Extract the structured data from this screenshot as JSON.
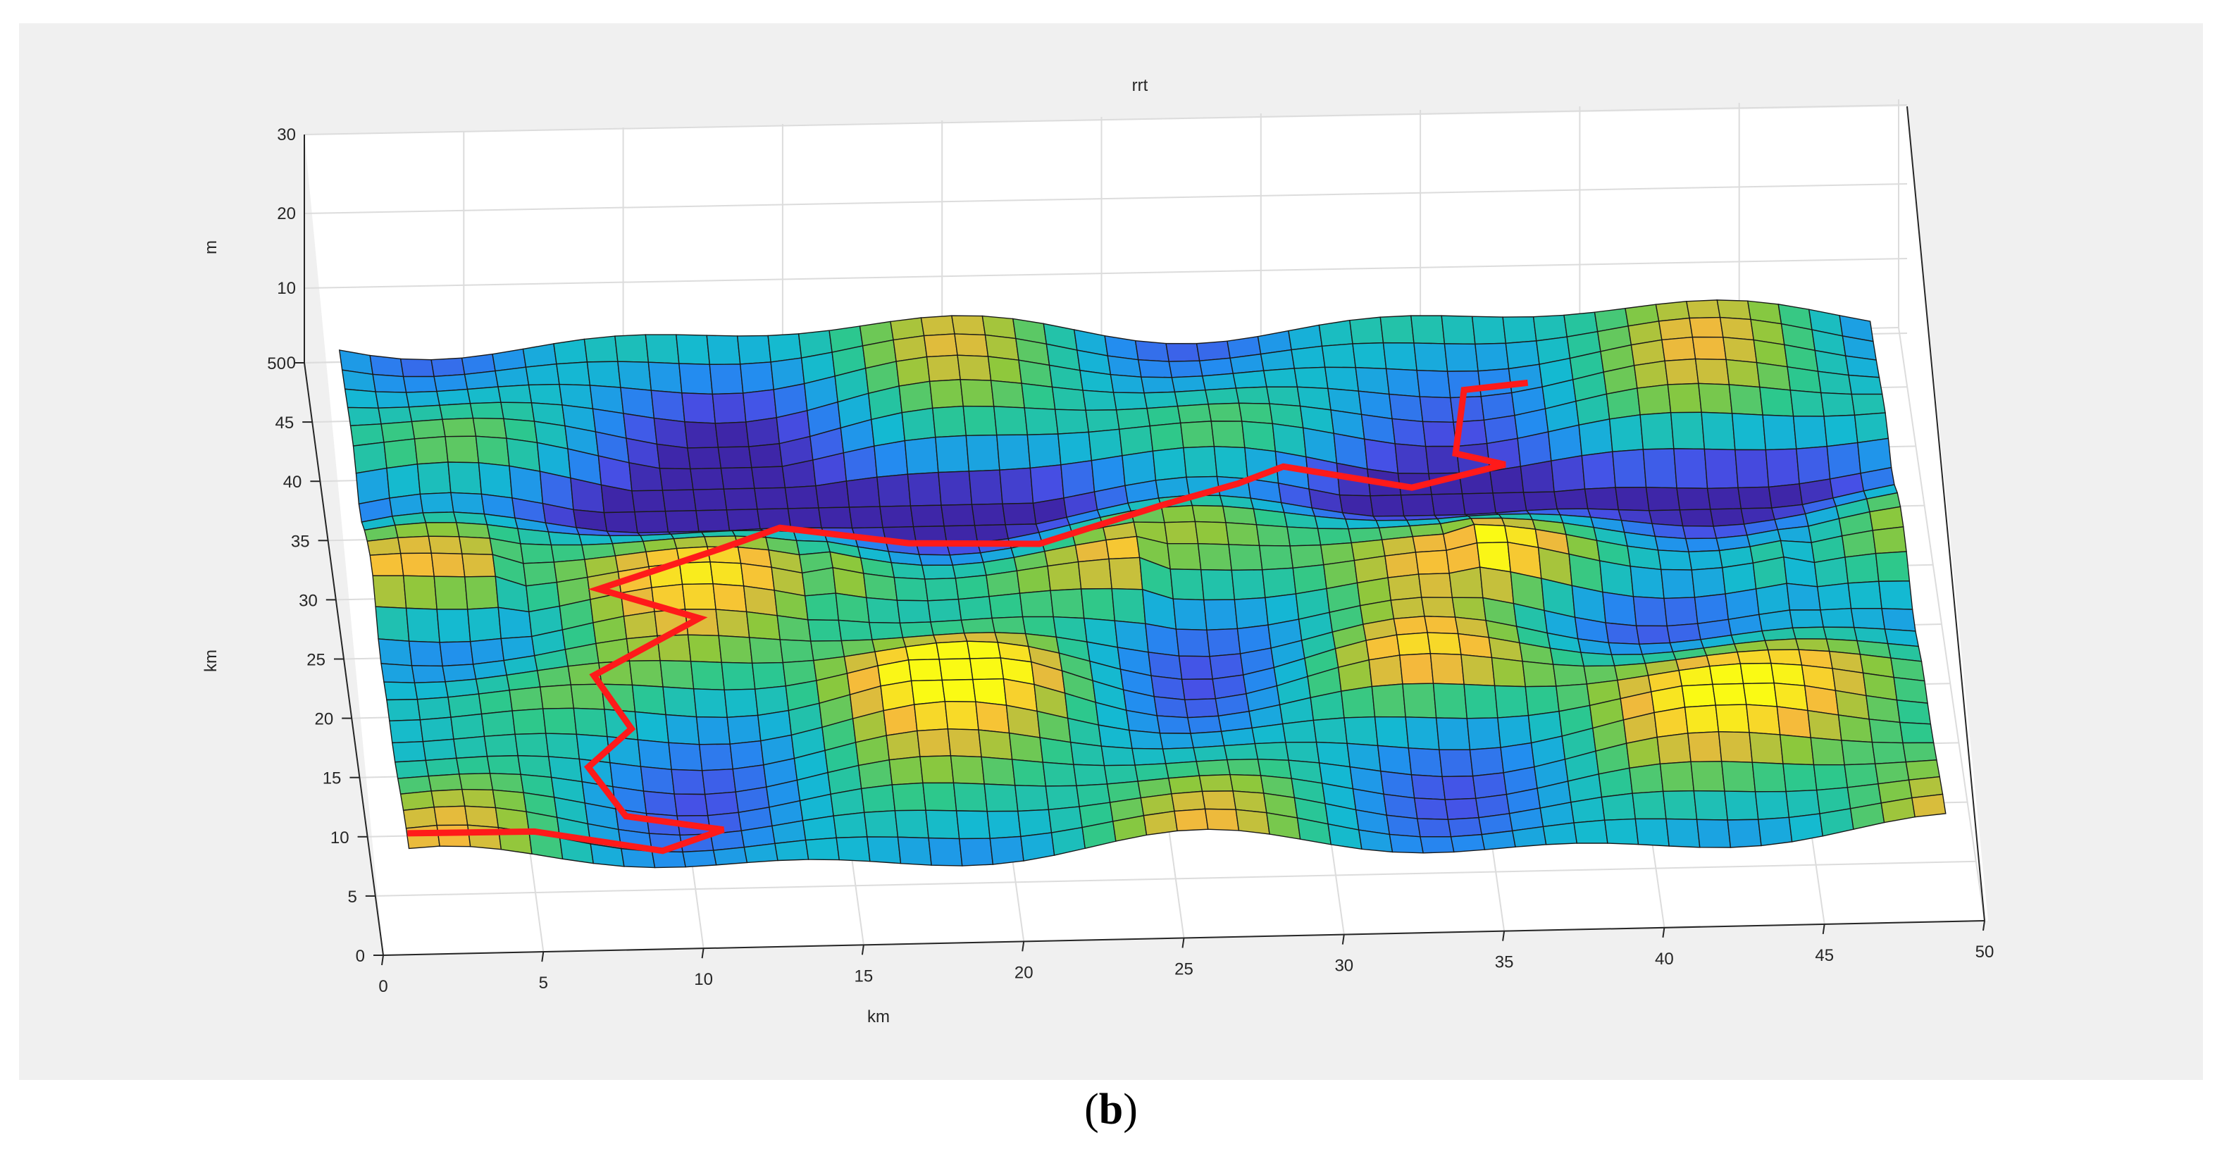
{
  "caption": {
    "open": "(",
    "letter": "b",
    "close": ")"
  },
  "colors": {
    "path": "#ff1a1a",
    "panel": "#f0f0f0",
    "axes_bg": "#ffffff",
    "grid": "#dcdcdc",
    "mesh_edge": "#1a1a1a"
  },
  "chart_data": {
    "type": "surface",
    "title": "rrt",
    "xlabel": "km",
    "ylabel": "km",
    "zlabel": "m",
    "xlim": [
      0,
      50
    ],
    "ylim": [
      0,
      50
    ],
    "zlim": [
      0,
      30
    ],
    "xticks": [
      "0",
      "5",
      "10",
      "15",
      "20",
      "25",
      "30",
      "35",
      "40",
      "45",
      "50"
    ],
    "yticks": [
      "0",
      "5",
      "10",
      "15",
      "20",
      "25",
      "30",
      "35",
      "40",
      "45",
      "50"
    ],
    "zticks": [
      "0",
      "10",
      "20",
      "30"
    ],
    "grid": true,
    "colormap": "parula",
    "path": {
      "x": [
        1,
        5,
        9,
        11,
        8,
        7,
        8.5,
        7.5,
        11,
        8,
        12,
        14,
        18,
        22,
        26,
        28.5,
        30,
        34,
        37,
        35.5,
        36,
        38
      ],
      "y": [
        5,
        5.6,
        5.5,
        7.5,
        8.5,
        12,
        15,
        18.5,
        22.5,
        25.5,
        28,
        32,
        31.5,
        29.5,
        32,
        35,
        36.5,
        36,
        37.5,
        38.5,
        43,
        43
      ]
    }
  }
}
